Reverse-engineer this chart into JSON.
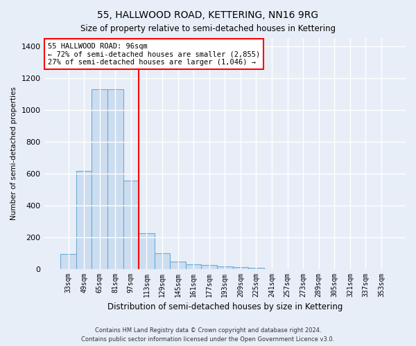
{
  "title": "55, HALLWOOD ROAD, KETTERING, NN16 9RG",
  "subtitle": "Size of property relative to semi-detached houses in Kettering",
  "xlabel": "Distribution of semi-detached houses by size in Kettering",
  "ylabel": "Number of semi-detached properties",
  "categories": [
    "33sqm",
    "49sqm",
    "65sqm",
    "81sqm",
    "97sqm",
    "113sqm",
    "129sqm",
    "145sqm",
    "161sqm",
    "177sqm",
    "193sqm",
    "209sqm",
    "225sqm",
    "241sqm",
    "257sqm",
    "273sqm",
    "289sqm",
    "305sqm",
    "321sqm",
    "337sqm",
    "353sqm"
  ],
  "values": [
    95,
    615,
    1130,
    1130,
    555,
    225,
    100,
    47,
    30,
    22,
    15,
    10,
    5,
    0,
    0,
    0,
    0,
    0,
    0,
    0,
    0
  ],
  "bar_color": "#ccddf0",
  "bar_edge_color": "#6aaad4",
  "property_line_color": "red",
  "property_line_index": 4,
  "annotation_text": "55 HALLWOOD ROAD: 96sqm\n← 72% of semi-detached houses are smaller (2,855)\n27% of semi-detached houses are larger (1,046) →",
  "annotation_box_color": "white",
  "annotation_box_edge_color": "red",
  "ylim": [
    0,
    1450
  ],
  "yticks": [
    0,
    200,
    400,
    600,
    800,
    1000,
    1200,
    1400
  ],
  "footer_line1": "Contains HM Land Registry data © Crown copyright and database right 2024.",
  "footer_line2": "Contains public sector information licensed under the Open Government Licence v3.0.",
  "fig_bg_color": "#e8eef8",
  "plot_bg_color": "#e8eef8"
}
